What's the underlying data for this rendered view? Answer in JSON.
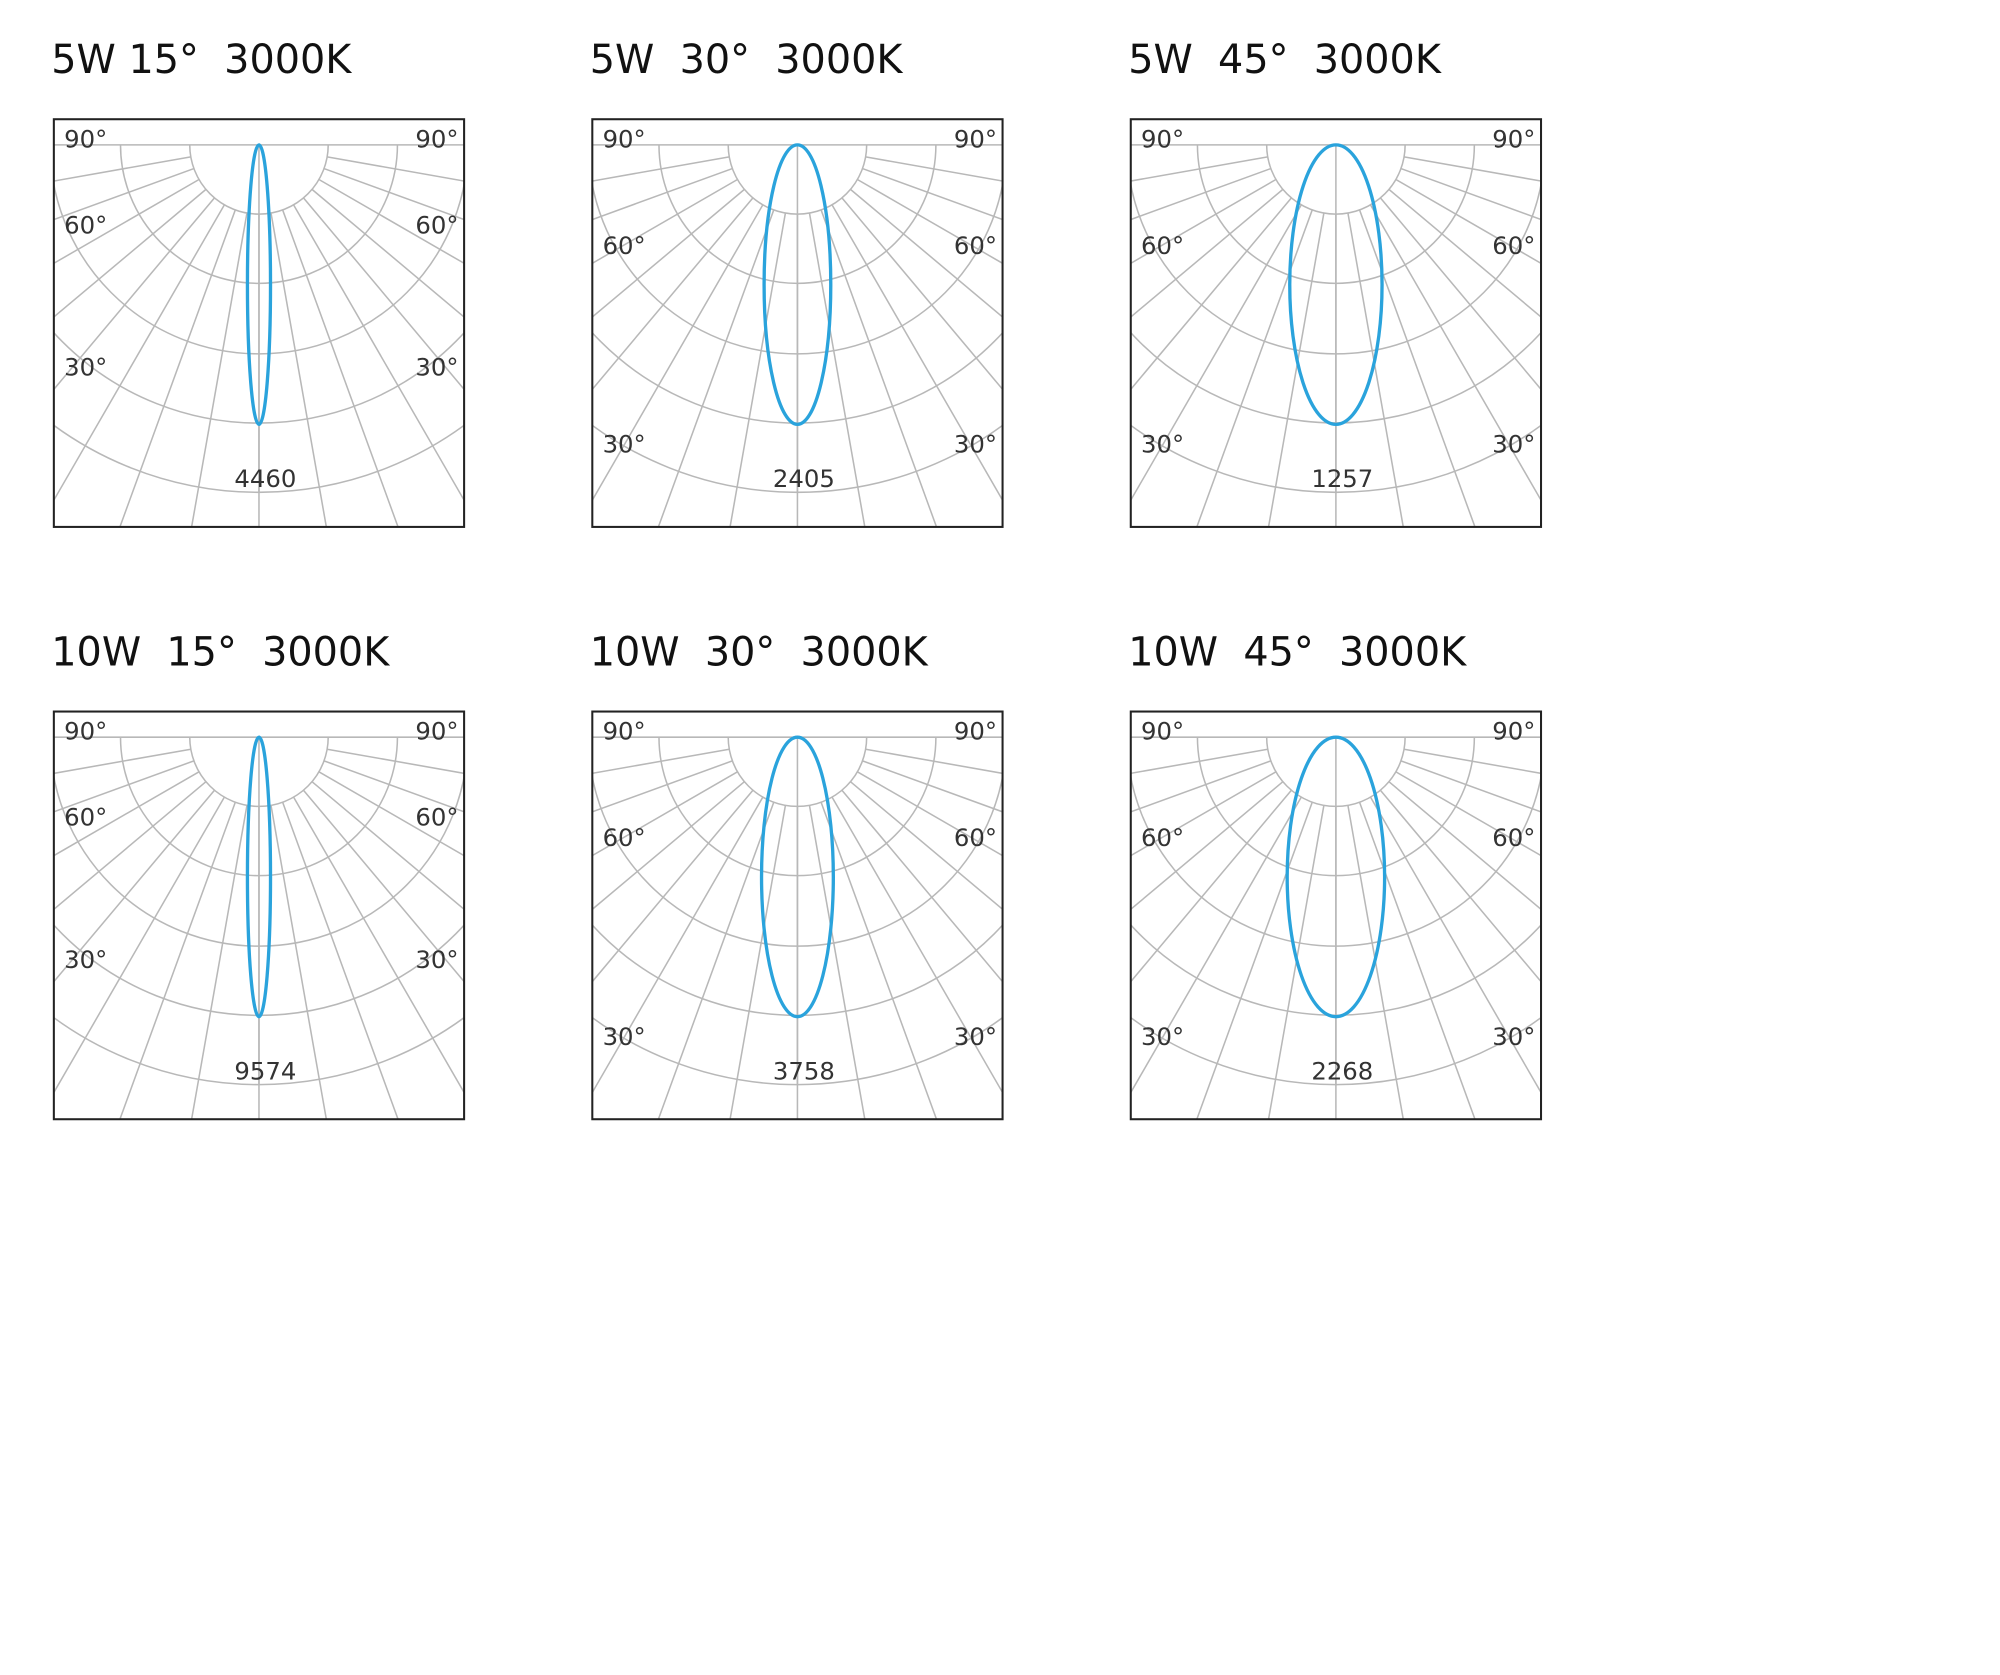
{
  "panels": [
    {
      "title": "5W 15°  3000K",
      "peak": 4460
    },
    {
      "title": "5W  30°  3000K",
      "peak": 2405
    },
    {
      "title": "5W  45°  3000K",
      "peak": 1257
    },
    {
      "title": "10W  15°  3000K",
      "peak": 9574
    },
    {
      "title": "10W  30°  3000K",
      "peak": 3758
    },
    {
      "title": "10W  45°  3000K",
      "peak": 2268
    }
  ],
  "angle_labels": [
    "90°",
    "60°",
    "30°"
  ]
}
